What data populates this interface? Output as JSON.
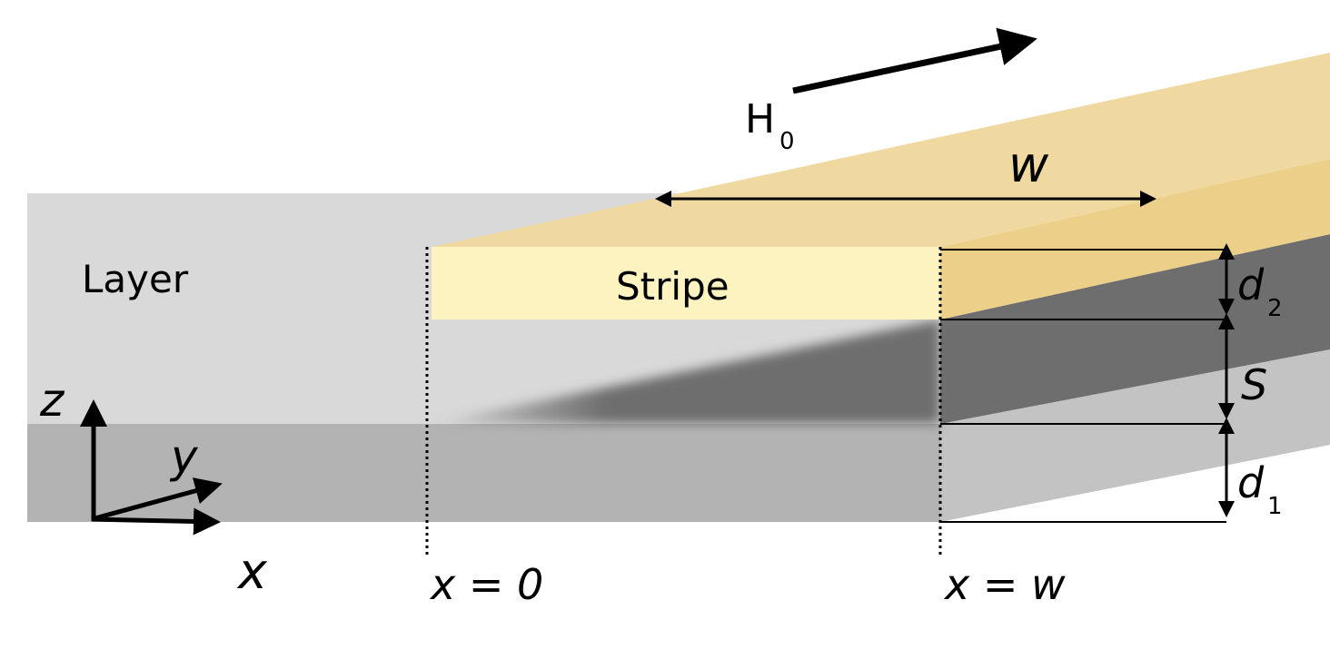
{
  "labels": {
    "layer": "Layer",
    "stripe": "Stripe"
  },
  "field": {
    "symbol": "H",
    "subscript": "0"
  },
  "width": "w",
  "dimensions": {
    "d2": {
      "symbol": "d",
      "subscript": "2"
    },
    "spacing": "S",
    "d1": {
      "symbol": "d",
      "subscript": "1"
    }
  },
  "axes": {
    "z": "z",
    "y": "y",
    "x": "x"
  },
  "positions": [
    "x = 0",
    "x = w"
  ]
}
